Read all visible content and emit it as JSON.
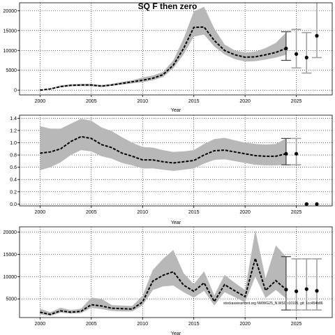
{
  "figure": {
    "title": "SQ F then zero",
    "watermark": "stockassessment.org NWWG25_N.WSC r10105, git: 1cc454b86"
  },
  "chart_data": [
    {
      "type": "line",
      "title": "SQ F then zero",
      "xlabel": "Year",
      "ylabel": "",
      "xlim": [
        1998,
        2028.5
      ],
      "ylim": [
        -1200,
        22000
      ],
      "xticks": [
        2000,
        2005,
        2010,
        2015,
        2020,
        2025
      ],
      "yticks": [
        0,
        5000,
        10000,
        15000,
        20000
      ],
      "grid": true,
      "series": [
        {
          "role": "estimate",
          "style": "dashed line with gray confidence band",
          "x": [
            2000,
            2001,
            2002,
            2003,
            2004,
            2005,
            2006,
            2007,
            2008,
            2009,
            2010,
            2011,
            2012,
            2013,
            2014,
            2015,
            2016,
            2017,
            2018,
            2019,
            2020,
            2021,
            2022,
            2023,
            2024
          ],
          "y": [
            0,
            300,
            900,
            1200,
            1300,
            1300,
            1000,
            1300,
            1700,
            2100,
            2500,
            3000,
            3900,
            6300,
            10500,
            15800,
            15900,
            12500,
            10000,
            8900,
            8300,
            8400,
            8900,
            9500,
            10500
          ],
          "lower": [
            0,
            200,
            700,
            1000,
            1000,
            1000,
            800,
            1100,
            1400,
            1700,
            2000,
            2500,
            3300,
            5500,
            9000,
            13500,
            14000,
            11000,
            9000,
            7800,
            7200,
            7300,
            7700,
            8200,
            8900
          ],
          "upper": [
            0,
            400,
            1200,
            1500,
            1600,
            1600,
            1300,
            1600,
            2100,
            2500,
            3200,
            3700,
            4600,
            7500,
            13000,
            19800,
            21000,
            15500,
            11500,
            10000,
            9500,
            9700,
            10600,
            11900,
            14500
          ]
        }
      ],
      "forecast": [
        {
          "x": 2024,
          "y": 10500,
          "lower": 7500,
          "upper": 14700
        },
        {
          "x": 2025,
          "y": 9100,
          "lower": 5600,
          "upper": 15300
        },
        {
          "x": 2026,
          "y": 8200,
          "lower": 4300,
          "upper": 14500
        },
        {
          "x": 2027,
          "y": 13700,
          "lower": 8200,
          "upper": 22500
        }
      ]
    },
    {
      "type": "line",
      "title": "",
      "xlabel": "Year",
      "ylabel": "",
      "xlim": [
        1998,
        2028.5
      ],
      "ylim": [
        -0.03,
        1.45
      ],
      "xticks": [
        2000,
        2005,
        2010,
        2015,
        2020,
        2025
      ],
      "yticks": [
        0.0,
        0.2,
        0.4,
        0.6,
        0.8,
        1.0,
        1.2,
        1.4
      ],
      "grid": true,
      "series": [
        {
          "role": "estimate",
          "style": "dashed line with gray confidence band",
          "x": [
            2000,
            2001,
            2002,
            2003,
            2004,
            2005,
            2006,
            2007,
            2008,
            2009,
            2010,
            2011,
            2012,
            2013,
            2014,
            2015,
            2016,
            2017,
            2018,
            2019,
            2020,
            2021,
            2022,
            2023,
            2024
          ],
          "y": [
            0.83,
            0.85,
            0.9,
            1.02,
            1.1,
            1.07,
            0.97,
            0.92,
            0.83,
            0.78,
            0.72,
            0.72,
            0.69,
            0.67,
            0.69,
            0.71,
            0.8,
            0.87,
            0.88,
            0.85,
            0.82,
            0.79,
            0.78,
            0.78,
            0.82
          ],
          "lower": [
            0.55,
            0.6,
            0.68,
            0.8,
            0.88,
            0.86,
            0.78,
            0.74,
            0.67,
            0.63,
            0.58,
            0.58,
            0.56,
            0.54,
            0.56,
            0.58,
            0.66,
            0.72,
            0.73,
            0.7,
            0.67,
            0.64,
            0.63,
            0.63,
            0.64
          ],
          "upper": [
            1.27,
            1.23,
            1.23,
            1.31,
            1.39,
            1.36,
            1.25,
            1.19,
            1.09,
            1.0,
            0.93,
            0.92,
            0.88,
            0.85,
            0.86,
            0.88,
            0.98,
            1.06,
            1.08,
            1.04,
            1.0,
            0.98,
            0.97,
            0.98,
            1.07
          ]
        }
      ],
      "forecast": [
        {
          "x": 2024,
          "y": 0.82,
          "lower": 0.64,
          "upper": 1.07
        },
        {
          "x": 2025,
          "y": 0.82,
          "lower": 0.64,
          "upper": 1.07
        },
        {
          "x": 2026,
          "y": 0.0,
          "lower": 0.0,
          "upper": 0.0
        },
        {
          "x": 2027,
          "y": 0.0,
          "lower": 0.0,
          "upper": 0.0
        }
      ]
    },
    {
      "type": "line",
      "title": "",
      "xlabel": "Year",
      "ylabel": "",
      "xlim": [
        1998,
        2028.5
      ],
      "ylim": [
        800,
        21200
      ],
      "xticks": [
        2000,
        2005,
        2010,
        2015,
        2020,
        2025
      ],
      "yticks": [
        5000,
        10000,
        15000,
        20000
      ],
      "grid": true,
      "series": [
        {
          "role": "estimate",
          "style": "dashed line with gray confidence band",
          "x": [
            2000,
            2001,
            2002,
            2003,
            2004,
            2005,
            2006,
            2007,
            2008,
            2009,
            2010,
            2011,
            2012,
            2013,
            2014,
            2015,
            2016,
            2017,
            2018,
            2019,
            2020,
            2021,
            2022,
            2023,
            2024
          ],
          "y": [
            2000,
            1500,
            2300,
            2000,
            2200,
            3700,
            3400,
            2900,
            2800,
            2700,
            4300,
            9000,
            10300,
            11100,
            8100,
            6700,
            8600,
            4400,
            8200,
            6800,
            5500,
            14100,
            6900,
            9100,
            7100
          ],
          "lower": [
            1500,
            1200,
            1900,
            1700,
            1800,
            3000,
            2700,
            2300,
            2200,
            2200,
            3500,
            7000,
            7800,
            8000,
            6500,
            5300,
            6800,
            3500,
            6500,
            5400,
            4200,
            10000,
            5200,
            7000,
            5100
          ],
          "upper": [
            2800,
            2000,
            3000,
            2500,
            2800,
            5300,
            5000,
            3600,
            3500,
            3400,
            5700,
            11500,
            14000,
            16000,
            10800,
            8300,
            11200,
            5800,
            10400,
            8600,
            7000,
            20500,
            9600,
            17000,
            14500
          ]
        }
      ],
      "forecast": [
        {
          "x": 2024,
          "y": 7100,
          "lower": 2500,
          "upper": 14500
        },
        {
          "x": 2025,
          "y": 6700,
          "lower": 2500,
          "upper": 14000
        },
        {
          "x": 2026,
          "y": 7200,
          "lower": 2500,
          "upper": 14000
        },
        {
          "x": 2027,
          "y": 6800,
          "lower": 2500,
          "upper": 14000
        }
      ]
    }
  ]
}
